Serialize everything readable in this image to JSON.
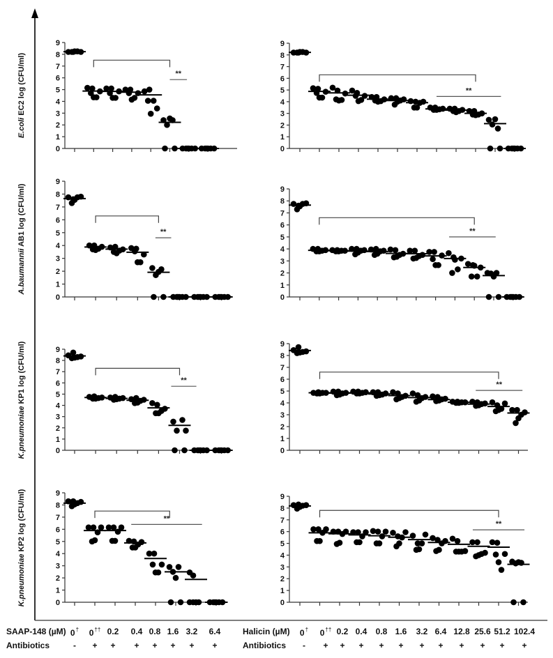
{
  "figure": {
    "left_conditions": {
      "label": "SAAP-148 (µM)",
      "concentrations": [
        "0",
        "0",
        "0.2",
        "0.4",
        "0.8",
        "1.6",
        "3.2",
        "6.4"
      ],
      "superscripts": [
        "†",
        "††",
        "",
        "",
        "",
        "",
        "",
        ""
      ],
      "antibiotics_label": "Antibiotics",
      "antibiotics": [
        "-",
        "+",
        "+",
        "+",
        "+",
        "+",
        "+",
        "+"
      ]
    },
    "right_conditions": {
      "label": "Halicin (µM)",
      "concentrations": [
        "0",
        "0",
        "0.2",
        "0.4",
        "0.8",
        "1.6",
        "3.2",
        "6.4",
        "12.8",
        "25.6",
        "51.2",
        "102.4"
      ],
      "superscripts": [
        "†",
        "††",
        "",
        "",
        "",
        "",
        "",
        "",
        "",
        "",
        "",
        ""
      ],
      "antibiotics_label": "Antibiotics",
      "antibiotics": [
        "-",
        "+",
        "+",
        "+",
        "+",
        "+",
        "+",
        "+",
        "+",
        "+",
        "+",
        "+"
      ]
    },
    "significance_label": "**"
  },
  "chart_data": [
    {
      "type": "scatter",
      "panel": "left-1",
      "ylabel_italic": "E.coli",
      "ylabel": " EC2 log (CFU/ml)",
      "ylim": [
        0,
        9
      ],
      "yticks": [
        0,
        1,
        2,
        3,
        4,
        5,
        6,
        7,
        8,
        9
      ],
      "categories": [
        "0† -",
        "0†† +",
        "0.2 +",
        "0.4 +",
        "0.8 +",
        "1.6 +",
        "3.2 +",
        "6.4 +"
      ],
      "points": [
        [
          8.2,
          8.2,
          8.25,
          8.25,
          8.2,
          8.2
        ],
        [
          5.15,
          4.7,
          4.35,
          4.35,
          4.85,
          5.1
        ],
        [
          5.1,
          4.7,
          4.3,
          4.3,
          4.85,
          5.1
        ],
        [
          5.0,
          4.7,
          4.15,
          4.3,
          4.7,
          5.0
        ],
        [
          4.85,
          4.05,
          2.95,
          4.05,
          3.4,
          5.0
        ],
        [
          2.4,
          2.0,
          2.55,
          2.4,
          0,
          0
        ],
        [
          0,
          0,
          0,
          0,
          0,
          0
        ],
        [
          0,
          0,
          0,
          0,
          0,
          0
        ]
      ],
      "means": [
        8.22,
        4.88,
        4.85,
        4.78,
        4.55,
        2.22,
        0,
        0
      ],
      "bracket": {
        "from": 1,
        "to": 5,
        "y": 7.5
      },
      "sig_line": {
        "from": 5,
        "to": 5.9,
        "y": 5.85
      }
    },
    {
      "type": "scatter",
      "panel": "right-1",
      "ylim": [
        0,
        9
      ],
      "yticks": [
        0,
        1,
        2,
        3,
        4,
        5,
        6,
        7,
        8,
        9
      ],
      "categories": [
        "0† -",
        "0†† +",
        "0.2 +",
        "0.4 +",
        "0.8 +",
        "1.6 +",
        "3.2 +",
        "6.4 +",
        "12.8 +",
        "25.6 +",
        "51.2 +",
        "102.4 +"
      ],
      "points": [
        [
          8.2,
          8.2,
          8.25,
          8.25,
          8.2,
          8.2
        ],
        [
          5.15,
          4.75,
          4.35,
          4.35,
          4.85,
          5.1
        ],
        [
          5.2,
          4.2,
          4.1,
          4.15,
          4.7,
          4.95
        ],
        [
          4.95,
          4.5,
          4.05,
          4.15,
          4.5,
          4.75
        ],
        [
          4.4,
          4.1,
          4.0,
          4.05,
          4.2,
          4.4
        ],
        [
          4.3,
          3.75,
          4.0,
          4.1,
          4.2,
          4.3
        ],
        [
          4.05,
          3.5,
          3.5,
          3.9,
          4.0,
          4.0
        ],
        [
          3.5,
          3.3,
          3.3,
          3.35,
          3.4,
          3.5
        ],
        [
          3.4,
          3.2,
          3.1,
          3.2,
          3.3,
          3.4
        ],
        [
          3.2,
          2.9,
          2.85,
          2.9,
          3.0,
          3.2
        ],
        [
          2.45,
          2.05,
          2.5,
          1.7,
          0,
          0
        ],
        [
          0,
          0,
          0,
          0,
          0,
          0
        ]
      ],
      "means": [
        8.22,
        4.88,
        4.75,
        4.55,
        4.22,
        4.1,
        3.92,
        3.38,
        3.28,
        3.0,
        2.12,
        0
      ],
      "bracket": {
        "from": 1,
        "to": 9,
        "y": 6.3
      },
      "sig_line": {
        "from": 7,
        "to": 10.3,
        "y": 4.45
      }
    },
    {
      "type": "scatter",
      "panel": "left-2",
      "ylabel_italic": "A.baumannii",
      "ylabel": " AB1 log (CFU/ml)",
      "ylim": [
        0,
        9
      ],
      "yticks": [
        0,
        1,
        2,
        3,
        4,
        5,
        6,
        7,
        8,
        9
      ],
      "categories": [
        "0† -",
        "0†† +",
        "0.2 +",
        "0.4 +",
        "0.8 +",
        "1.6 +",
        "3.2 +",
        "6.4 +"
      ],
      "points": [
        [
          7.75,
          7.3,
          7.55,
          7.75,
          7.8,
          7.6
        ],
        [
          4.0,
          3.7,
          3.65,
          3.75,
          3.9,
          4.0
        ],
        [
          3.85,
          3.5,
          3.4,
          3.6,
          3.7,
          3.9
        ],
        [
          3.8,
          3.55,
          2.7,
          2.7,
          3.3,
          3.75
        ],
        [
          2.25,
          1.7,
          1.95,
          2.15,
          0,
          0
        ],
        [
          0,
          0,
          0,
          0,
          0,
          0
        ],
        [
          0,
          0,
          0,
          0,
          0,
          0
        ],
        [
          0,
          0,
          0,
          0,
          0,
          0
        ]
      ],
      "means": [
        7.65,
        3.88,
        3.72,
        3.48,
        1.92,
        0,
        0,
        0
      ],
      "bracket": {
        "from": 1,
        "to": 4,
        "y": 6.3
      },
      "sig_line": {
        "from": 3.85,
        "to": 4.6,
        "y": 4.6
      }
    },
    {
      "type": "scatter",
      "panel": "right-2",
      "ylim": [
        0,
        9
      ],
      "yticks": [
        0,
        1,
        2,
        3,
        4,
        5,
        6,
        7,
        8,
        9
      ],
      "categories": [
        "0† -",
        "0†† +",
        "0.2 +",
        "0.4 +",
        "0.8 +",
        "1.6 +",
        "3.2 +",
        "6.4 +",
        "12.8 +",
        "25.6 +",
        "51.2 +",
        "102.4 +"
      ],
      "points": [
        [
          7.75,
          7.3,
          7.55,
          7.75,
          7.8,
          7.6
        ],
        [
          4.0,
          3.8,
          3.8,
          3.85,
          3.9,
          4.0
        ],
        [
          3.9,
          3.8,
          3.8,
          3.85,
          3.85,
          3.9
        ],
        [
          4.0,
          3.55,
          3.7,
          3.85,
          3.9,
          4.0
        ],
        [
          3.95,
          3.5,
          3.6,
          3.8,
          3.85,
          4.0
        ],
        [
          3.95,
          3.3,
          3.35,
          3.5,
          3.6,
          3.9
        ],
        [
          3.85,
          3.2,
          3.25,
          3.4,
          3.5,
          3.85
        ],
        [
          3.75,
          3.15,
          2.65,
          2.65,
          3.45,
          3.75
        ],
        [
          3.65,
          2.0,
          3.1,
          2.3,
          3.2,
          3.3
        ],
        [
          2.75,
          1.7,
          2.6,
          1.7,
          2.45,
          2.65
        ],
        [
          2.0,
          1.95,
          1.7,
          2.0,
          0,
          0
        ],
        [
          0,
          0,
          0,
          0,
          0,
          0
        ]
      ],
      "means": [
        7.65,
        3.88,
        3.85,
        3.82,
        3.78,
        3.62,
        3.6,
        3.42,
        3.2,
        2.45,
        1.78,
        0
      ],
      "bracket": {
        "from": 1,
        "to": 9,
        "y": 6.6
      },
      "sig_line": {
        "from": 7.7,
        "to": 10.1,
        "y": 5.0
      }
    },
    {
      "type": "scatter",
      "panel": "left-3",
      "ylabel_italic": "K.pneumoniae",
      "ylabel": " KP1 log (CFU/ml)",
      "ylim": [
        0,
        9
      ],
      "yticks": [
        0,
        1,
        2,
        3,
        4,
        5,
        6,
        7,
        8,
        9
      ],
      "categories": [
        "0† -",
        "0†† +",
        "0.2 +",
        "0.4 +",
        "0.8 +",
        "1.6 +",
        "3.2 +",
        "6.4 +"
      ],
      "points": [
        [
          8.45,
          8.2,
          8.25,
          8.3,
          8.35,
          8.7
        ],
        [
          4.75,
          4.6,
          4.6,
          4.65,
          4.7,
          4.8
        ],
        [
          4.7,
          4.5,
          4.55,
          4.6,
          4.65,
          4.75
        ],
        [
          4.55,
          4.2,
          4.25,
          4.4,
          4.5,
          4.65
        ],
        [
          4.2,
          3.3,
          3.3,
          3.5,
          3.7,
          4.05
        ],
        [
          2.55,
          1.75,
          0,
          2.7,
          1.75,
          0
        ],
        [
          0,
          0,
          0,
          0,
          0,
          0
        ],
        [
          0,
          0,
          0,
          0,
          0,
          0
        ]
      ],
      "means": [
        8.4,
        4.7,
        4.62,
        4.45,
        3.78,
        2.22,
        0,
        0
      ],
      "bracket": {
        "from": 1,
        "to": 5,
        "y": 7.3
      },
      "sig_line": {
        "from": 4.6,
        "to": 5.8,
        "y": 5.7
      }
    },
    {
      "type": "scatter",
      "panel": "right-3",
      "ylim": [
        0,
        9
      ],
      "yticks": [
        0,
        1,
        2,
        3,
        4,
        5,
        6,
        7,
        8,
        9
      ],
      "categories": [
        "0† -",
        "0†† +",
        "0.2 +",
        "0.4 +",
        "0.8 +",
        "1.6 +",
        "3.2 +",
        "6.4 +",
        "12.8 +",
        "25.6 +",
        "51.2 +",
        "102.4 +"
      ],
      "points": [
        [
          8.45,
          8.2,
          8.25,
          8.3,
          8.35,
          8.7
        ],
        [
          4.85,
          4.8,
          4.8,
          4.85,
          4.85,
          4.9
        ],
        [
          4.95,
          4.65,
          4.7,
          4.8,
          4.85,
          4.95
        ],
        [
          4.95,
          4.8,
          4.8,
          4.85,
          4.9,
          4.95
        ],
        [
          4.9,
          4.6,
          4.65,
          4.7,
          4.8,
          4.9
        ],
        [
          4.9,
          4.3,
          4.4,
          4.5,
          4.6,
          4.8
        ],
        [
          4.8,
          4.1,
          4.2,
          4.4,
          4.5,
          4.65
        ],
        [
          4.55,
          4.15,
          4.2,
          4.3,
          4.35,
          4.5
        ],
        [
          4.1,
          4.0,
          4.0,
          4.05,
          4.05,
          4.1
        ],
        [
          4.1,
          3.75,
          3.8,
          3.9,
          3.95,
          4.05
        ],
        [
          4.05,
          3.3,
          3.4,
          3.5,
          3.95,
          3.8
        ],
        [
          3.4,
          2.3,
          2.7,
          3.0,
          3.2,
          3.4
        ]
      ],
      "means": [
        8.42,
        4.85,
        4.82,
        4.85,
        4.75,
        4.62,
        4.45,
        4.28,
        4.05,
        3.9,
        3.7,
        3.15
      ],
      "bracket": {
        "from": 1,
        "to": 10,
        "y": 6.6
      },
      "sig_line": {
        "from": 8.85,
        "to": 11.2,
        "y": 5.05
      }
    },
    {
      "type": "scatter",
      "panel": "left-4",
      "ylabel_italic": "K.pneumoniae",
      "ylabel": " KP2 log (CFU/ml)",
      "ylim": [
        0,
        9
      ],
      "yticks": [
        0,
        1,
        2,
        3,
        4,
        5,
        6,
        7,
        8,
        9
      ],
      "categories": [
        "0† -",
        "0†† +",
        "0.2 +",
        "0.4 +",
        "0.8 +",
        "1.6 +",
        "3.2 +",
        "6.4 +"
      ],
      "points": [
        [
          8.3,
          7.9,
          8.05,
          8.15,
          8.25,
          8.3
        ],
        [
          6.15,
          5.0,
          5.1,
          5.75,
          6.15,
          6.15
        ],
        [
          6.15,
          5.05,
          5.05,
          5.8,
          6.15,
          6.15
        ],
        [
          5.05,
          4.5,
          4.5,
          4.75,
          4.95,
          5.0
        ],
        [
          4.0,
          3.1,
          2.45,
          2.45,
          3.1,
          4.0
        ],
        [
          2.9,
          2.5,
          2.0,
          2.9,
          0,
          0
        ],
        [
          2.45,
          2.2,
          0,
          0,
          0,
          0
        ],
        [
          0,
          0,
          0,
          0,
          0,
          0
        ]
      ],
      "means": [
        8.15,
        5.9,
        5.9,
        4.88,
        3.6,
        2.5,
        1.88,
        0
      ],
      "bracket": {
        "from": 1,
        "to": 4.7,
        "y": 7.5
      },
      "sig_line": {
        "from": 2.8,
        "to": 6.3,
        "y": 6.4
      }
    },
    {
      "type": "scatter",
      "panel": "right-4",
      "ylim": [
        0,
        9
      ],
      "yticks": [
        0,
        1,
        2,
        3,
        4,
        5,
        6,
        7,
        8,
        9
      ],
      "categories": [
        "0† -",
        "0†† +",
        "0.2 +",
        "0.4 +",
        "0.8 +",
        "1.6 +",
        "3.2 +",
        "6.4 +",
        "12.8 +",
        "25.6 +",
        "51.2 +",
        "102.4 +"
      ],
      "points": [
        [
          8.25,
          7.95,
          8.1,
          8.2,
          8.25,
          8.3
        ],
        [
          6.2,
          5.2,
          5.2,
          5.9,
          6.2,
          6.2
        ],
        [
          6.0,
          4.95,
          5.05,
          5.8,
          6.0,
          6.0
        ],
        [
          5.95,
          5.1,
          5.1,
          5.6,
          5.95,
          5.95
        ],
        [
          6.05,
          5.0,
          5.0,
          5.6,
          6.0,
          6.0
        ],
        [
          5.9,
          4.75,
          5.0,
          5.5,
          5.95,
          5.6
        ],
        [
          5.65,
          4.45,
          4.5,
          5.0,
          5.75,
          5.0
        ],
        [
          5.45,
          4.35,
          4.45,
          5.0,
          5.2,
          5.3
        ],
        [
          5.4,
          4.3,
          4.3,
          4.3,
          4.35,
          5.2
        ],
        [
          5.1,
          3.9,
          4.0,
          4.1,
          4.2,
          5.1
        ],
        [
          5.1,
          4.05,
          3.4,
          2.75,
          4.1,
          5.05
        ],
        [
          3.45,
          3.3,
          3.4,
          3.35,
          0,
          0
        ]
      ],
      "means": [
        8.18,
        5.9,
        5.82,
        5.72,
        5.65,
        5.52,
        5.32,
        5.08,
        4.92,
        4.75,
        4.68,
        3.22
      ],
      "bracket": {
        "from": 1,
        "to": 10,
        "y": 7.8
      },
      "sig_line": {
        "from": 8.7,
        "to": 11.3,
        "y": 6.15
      }
    }
  ]
}
